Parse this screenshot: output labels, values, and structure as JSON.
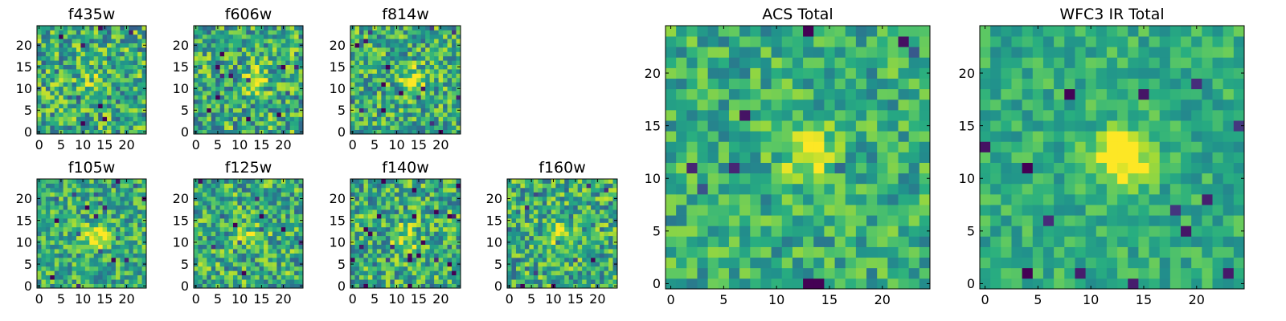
{
  "figure": {
    "background": "#ffffff"
  },
  "chart_data": [
    {
      "id": "f435w",
      "type": "heatmap",
      "title": "f435w",
      "grid_size": 25,
      "xlim": [
        0,
        24
      ],
      "ylim": [
        0,
        24
      ],
      "xticks": [
        0,
        5,
        10,
        15,
        20
      ],
      "yticks": [
        0,
        5,
        10,
        15,
        20
      ],
      "colormap": "viridis",
      "source_center": [
        12,
        12
      ],
      "source_strength": 0.12,
      "noise": 0.32,
      "seed": 11
    },
    {
      "id": "f606w",
      "type": "heatmap",
      "title": "f606w",
      "grid_size": 25,
      "xlim": [
        0,
        24
      ],
      "ylim": [
        0,
        24
      ],
      "xticks": [
        0,
        5,
        10,
        15,
        20
      ],
      "yticks": [
        0,
        5,
        10,
        15,
        20
      ],
      "colormap": "viridis",
      "source_center": [
        14,
        12
      ],
      "source_strength": 0.3,
      "noise": 0.32,
      "seed": 23
    },
    {
      "id": "f814w",
      "type": "heatmap",
      "title": "f814w",
      "grid_size": 25,
      "xlim": [
        0,
        24
      ],
      "ylim": [
        0,
        24
      ],
      "xticks": [
        0,
        5,
        10,
        15,
        20
      ],
      "yticks": [
        0,
        5,
        10,
        15,
        20
      ],
      "colormap": "viridis",
      "source_center": [
        14,
        12
      ],
      "source_strength": 0.38,
      "noise": 0.3,
      "seed": 37
    },
    {
      "id": "f105w",
      "type": "heatmap",
      "title": "f105w",
      "grid_size": 25,
      "xlim": [
        0,
        24
      ],
      "ylim": [
        0,
        24
      ],
      "xticks": [
        0,
        5,
        10,
        15,
        20
      ],
      "yticks": [
        0,
        5,
        10,
        15,
        20
      ],
      "colormap": "viridis",
      "source_center": [
        13,
        11
      ],
      "source_strength": 0.45,
      "noise": 0.26,
      "seed": 41
    },
    {
      "id": "f125w",
      "type": "heatmap",
      "title": "f125w",
      "grid_size": 25,
      "xlim": [
        0,
        24
      ],
      "ylim": [
        0,
        24
      ],
      "xticks": [
        0,
        5,
        10,
        15,
        20
      ],
      "yticks": [
        0,
        5,
        10,
        15,
        20
      ],
      "colormap": "viridis",
      "source_center": [
        13,
        11
      ],
      "source_strength": 0.3,
      "noise": 0.3,
      "seed": 53
    },
    {
      "id": "f140w",
      "type": "heatmap",
      "title": "f140w",
      "grid_size": 25,
      "xlim": [
        0,
        24
      ],
      "ylim": [
        0,
        24
      ],
      "xticks": [
        0,
        5,
        10,
        15,
        20
      ],
      "yticks": [
        0,
        5,
        10,
        15,
        20
      ],
      "colormap": "viridis",
      "source_center": [
        12,
        11
      ],
      "source_strength": 0.3,
      "noise": 0.3,
      "seed": 67
    },
    {
      "id": "f160w",
      "type": "heatmap",
      "title": "f160w",
      "grid_size": 25,
      "xlim": [
        0,
        24
      ],
      "ylim": [
        0,
        24
      ],
      "xticks": [
        0,
        5,
        10,
        15,
        20
      ],
      "yticks": [
        0,
        5,
        10,
        15,
        20
      ],
      "colormap": "viridis",
      "source_center": [
        11,
        12
      ],
      "source_strength": 0.35,
      "noise": 0.3,
      "seed": 79
    },
    {
      "id": "acs_total",
      "type": "heatmap",
      "title": "ACS Total",
      "grid_size": 25,
      "xlim": [
        0,
        24
      ],
      "ylim": [
        0,
        24
      ],
      "xticks": [
        0,
        5,
        10,
        15,
        20
      ],
      "yticks": [
        0,
        5,
        10,
        15,
        20
      ],
      "colormap": "viridis",
      "source_center": [
        13,
        12
      ],
      "source_strength": 0.35,
      "noise": 0.22,
      "seed": 97
    },
    {
      "id": "wfc3_ir_total",
      "type": "heatmap",
      "title": "WFC3 IR Total",
      "grid_size": 25,
      "xlim": [
        0,
        24
      ],
      "ylim": [
        0,
        24
      ],
      "xticks": [
        0,
        5,
        10,
        15,
        20
      ],
      "yticks": [
        0,
        5,
        10,
        15,
        20
      ],
      "colormap": "viridis",
      "source_center": [
        13,
        12
      ],
      "source_strength": 0.55,
      "noise": 0.16,
      "seed": 131
    }
  ]
}
